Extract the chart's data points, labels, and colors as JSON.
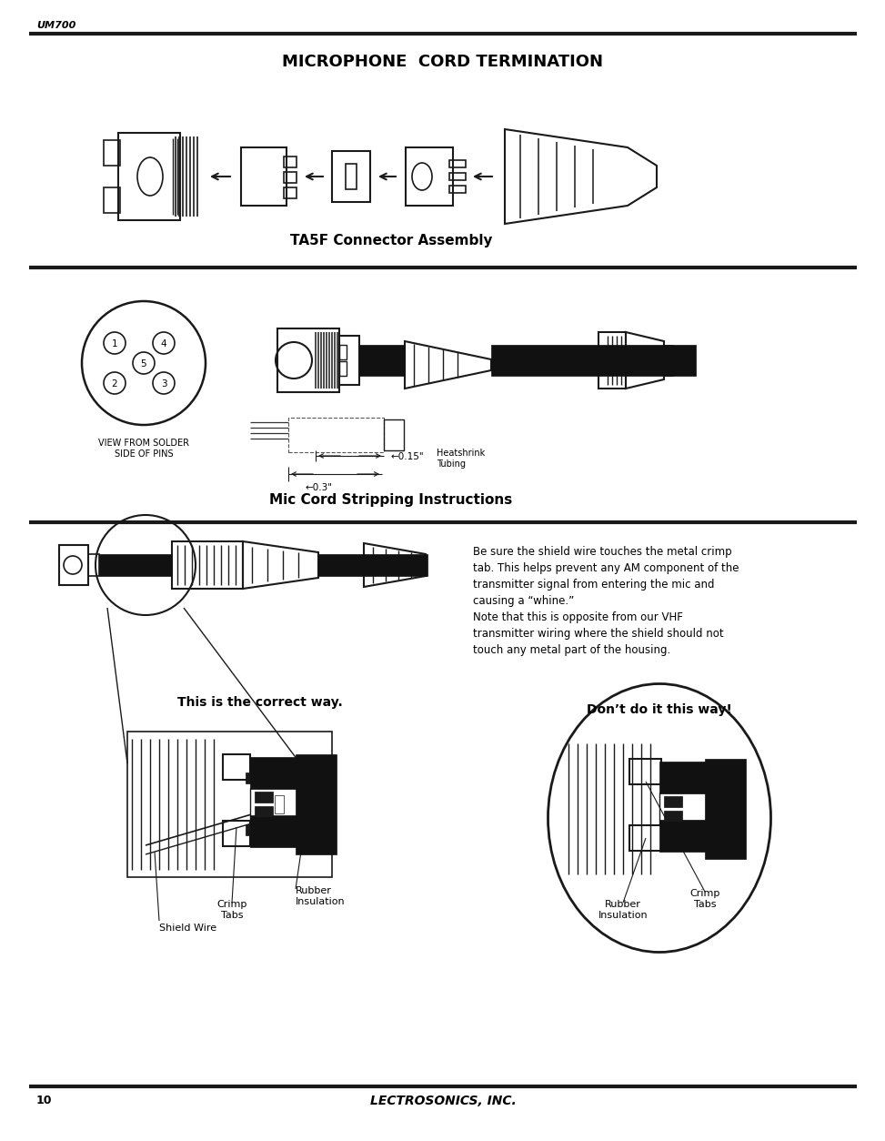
{
  "page_bg": "#ffffff",
  "text_color": "#000000",
  "header_text": "UM700",
  "title": "MICROPHONE  CORD TERMINATION",
  "section1_label": "TA5F Connector Assembly",
  "section2_label": "Mic Cord Stripping Instructions",
  "footer_page": "10",
  "footer_company": "LECTROSONICS, INC.",
  "body_text_right": "Be sure the shield wire touches the metal crimp\ntab. This helps prevent any AM component of the\ntransmitter signal from entering the mic and\ncausing a “whine.”\nNote that this is opposite from our VHF\ntransmitter wiring where the shield should not\ntouch any metal part of the housing.",
  "correct_label": "This is the correct way.",
  "wrong_label": "Don’t do it this way!",
  "shield_wire_label": "Shield Wire",
  "crimp_tabs_label1": "Crimp\nTabs",
  "rubber_insulation_label1": "Rubber\nInsulation",
  "crimp_tabs_label2": "Crimp\nTabs",
  "rubber_insulation_label2": "Rubber\nInsulation",
  "measurement1": "←0.15\"",
  "measurement2": "←0.3\"",
  "heatshrink_label": "Heatshrink\nTubing",
  "view_label": "VIEW FROM SOLDER\nSIDE OF PINS",
  "pin_labels": [
    "1",
    "2",
    "3",
    "4",
    "5"
  ]
}
